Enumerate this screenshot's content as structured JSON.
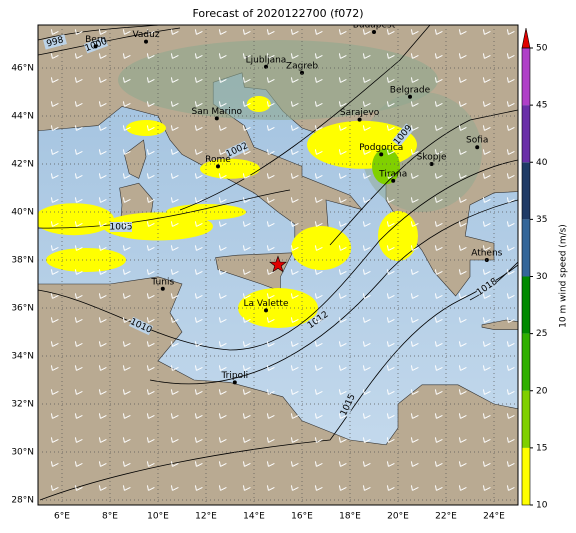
{
  "title": "Forecast of 2020122700 (f072)",
  "lon_ticks": [
    "6°E",
    "8°E",
    "10°E",
    "12°E",
    "14°E",
    "16°E",
    "18°E",
    "20°E",
    "22°E",
    "24°E"
  ],
  "lat_ticks": [
    "28°N",
    "30°N",
    "32°N",
    "34°N",
    "36°N",
    "38°N",
    "40°N",
    "42°N",
    "44°N",
    "46°N"
  ],
  "cities": [
    "Bern",
    "Vaduz",
    "Budapest",
    "Ljubljana",
    "Zagreb",
    "Belgrade",
    "Sarajevo",
    "San Marino",
    "Sofia",
    "Podgorica",
    "Skopje",
    "Rome",
    "Tirana",
    "Athens",
    "Tunis",
    "La Valette",
    "Tripoli"
  ],
  "isobar_labels": [
    998,
    1000,
    1002,
    1005,
    1009,
    1010,
    1012,
    1015,
    1018
  ],
  "colorbar": {
    "label": "10 m wind speed (m/s)",
    "range": [
      10,
      50
    ],
    "ticks": [
      10,
      15,
      20,
      25,
      30,
      35,
      40,
      45,
      50
    ],
    "colors": [
      "#ffff00",
      "#80d000",
      "#30b000",
      "#008a00",
      "#336699",
      "#1f3a66",
      "#6a2fa8",
      "#b040c8"
    ],
    "over_color": "#e00000"
  }
}
